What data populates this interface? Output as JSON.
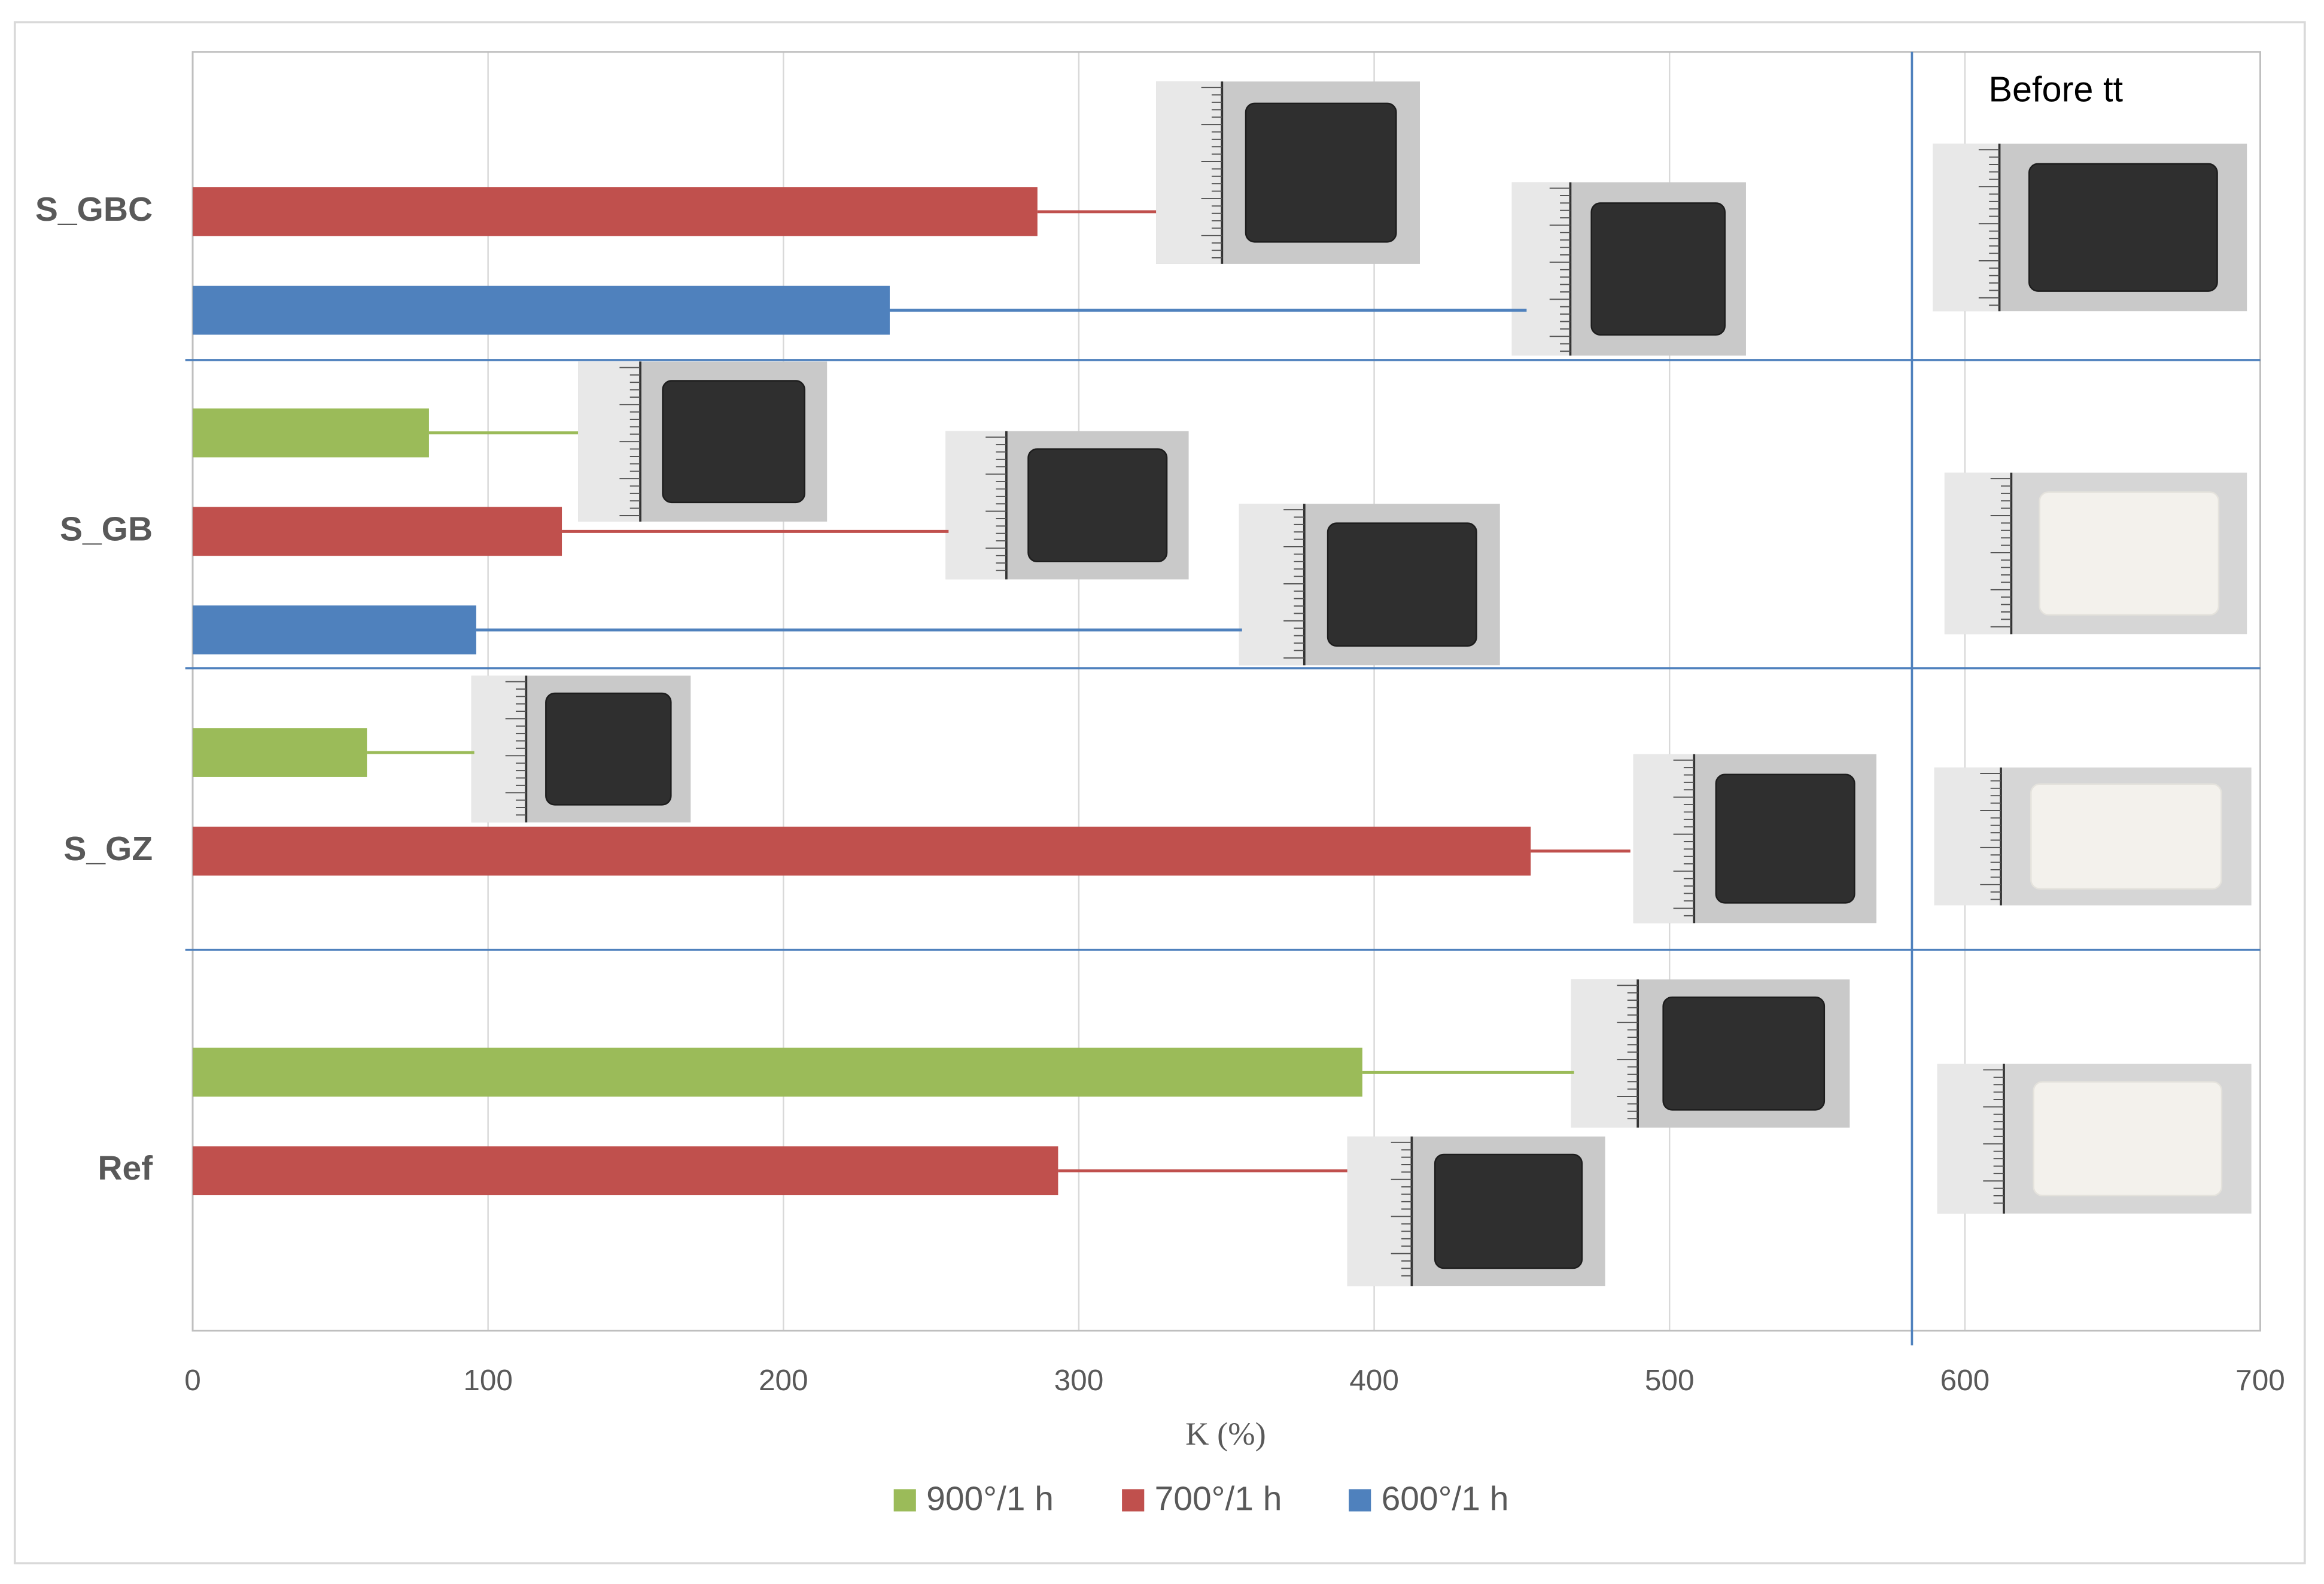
{
  "chart_data": {
    "type": "bar",
    "orientation": "horizontal",
    "categories": [
      "S_GBC",
      "S_GB",
      "S_GZ",
      "Ref"
    ],
    "series": [
      {
        "name": "900°/1 h",
        "color": "#9bbb59",
        "values": [
          null,
          80,
          59,
          396
        ]
      },
      {
        "name": "700°/1 h",
        "color": "#c0504d",
        "values": [
          286,
          125,
          453,
          293
        ]
      },
      {
        "name": "600°/1 h",
        "color": "#4f81bd",
        "values": [
          236,
          96,
          null,
          null
        ]
      }
    ],
    "xlim": [
      0,
      700
    ],
    "xticks": [
      0,
      100,
      200,
      300,
      400,
      500,
      600,
      700
    ],
    "xlabel": "K (%)",
    "annotation": "Before tt",
    "grid": true,
    "legend": "bottom"
  }
}
